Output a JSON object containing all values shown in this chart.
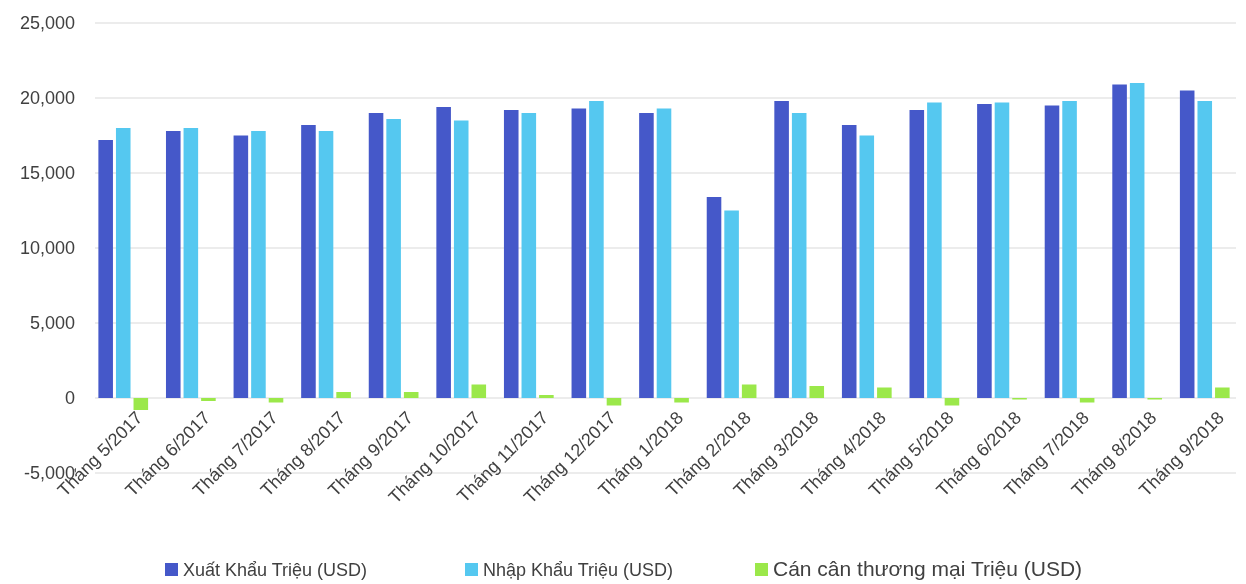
{
  "chart_data": {
    "type": "bar",
    "categories": [
      "Tháng 5/2017",
      "Tháng 6/2017",
      "Tháng 7/2017",
      "Tháng 8/2017",
      "Tháng 9/2017",
      "Tháng 10/2017",
      "Tháng 11/2017",
      "Tháng 12/2017",
      "Tháng 1/2018",
      "Tháng 2/2018",
      "Tháng 3/2018",
      "Tháng 4/2018",
      "Tháng 5/2018",
      "Tháng 6/2018",
      "Tháng 7/2018",
      "Tháng 8/2018",
      "Tháng 9/2018"
    ],
    "series": [
      {
        "name": "Xuất Khẩu Triệu (USD)",
        "color": "#4558c9",
        "values": [
          17200,
          17800,
          17500,
          18200,
          19000,
          19400,
          19200,
          19300,
          19000,
          13400,
          19800,
          18200,
          19200,
          19600,
          19500,
          20900,
          20500
        ]
      },
      {
        "name": "Nhập Khẩu Triệu (USD)",
        "color": "#55c8f0",
        "values": [
          18000,
          18000,
          17800,
          17800,
          18600,
          18500,
          19000,
          19800,
          19300,
          12500,
          19000,
          17500,
          19700,
          19700,
          19800,
          21000,
          19800
        ]
      },
      {
        "name": "Cán cân thương mại Triệu (USD)",
        "color": "#9be84a",
        "values": [
          -800,
          -200,
          -300,
          400,
          400,
          900,
          200,
          -500,
          -300,
          900,
          800,
          700,
          -500,
          -100,
          -300,
          -100,
          700
        ]
      }
    ],
    "ylim": [
      -5000,
      25000
    ],
    "yticks": [
      {
        "value": -5000,
        "label": "-5,000"
      },
      {
        "value": 0,
        "label": "0"
      },
      {
        "value": 5000,
        "label": "5,000"
      },
      {
        "value": 10000,
        "label": "10,000"
      },
      {
        "value": 15000,
        "label": "15,000"
      },
      {
        "value": 20000,
        "label": "20,000"
      },
      {
        "value": 25000,
        "label": "25,000"
      }
    ],
    "grid": "y",
    "legend": "bottom"
  }
}
